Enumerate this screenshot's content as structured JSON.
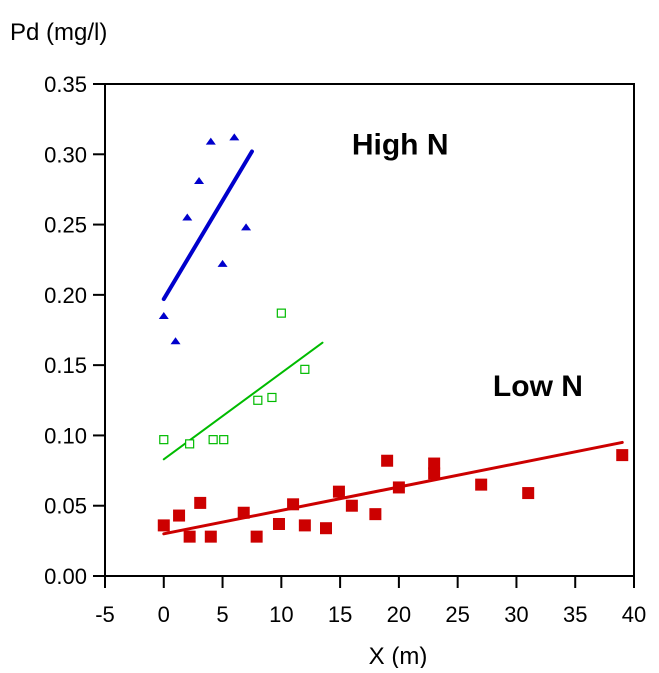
{
  "chart_data": {
    "type": "scatter",
    "ylabel": "Pd (mg/l)",
    "xlabel": "X (m)",
    "xlim": [
      -5,
      40
    ],
    "ylim": [
      0,
      0.35
    ],
    "xticks": [
      -5,
      0,
      5,
      10,
      15,
      20,
      25,
      30,
      35,
      40
    ],
    "yticks": [
      0.0,
      0.05,
      0.1,
      0.15,
      0.2,
      0.25,
      0.3,
      0.35
    ],
    "xtick_labels": [
      "-5",
      "0",
      "5",
      "10",
      "15",
      "20",
      "25",
      "30",
      "35",
      "40"
    ],
    "ytick_labels": [
      "0.00",
      "0.05",
      "0.10",
      "0.15",
      "0.20",
      "0.25",
      "0.30",
      "0.35"
    ],
    "grid": false,
    "annotations": [
      {
        "text": "High N",
        "x": 16,
        "y": 0.3
      },
      {
        "text": "Low N",
        "x": 28,
        "y": 0.128
      }
    ],
    "series": [
      {
        "color": "#0000cc",
        "marker": "triangle",
        "points": [
          [
            0,
            0.185
          ],
          [
            1,
            0.167
          ],
          [
            2,
            0.255
          ],
          [
            3,
            0.281
          ],
          [
            4,
            0.309
          ],
          [
            5,
            0.222
          ],
          [
            6,
            0.312
          ],
          [
            7,
            0.248
          ]
        ],
        "trend": [
          [
            0,
            0.197
          ],
          [
            7.5,
            0.302
          ]
        ]
      },
      {
        "color": "#00bb00",
        "marker": "open-square",
        "points": [
          [
            0,
            0.097
          ],
          [
            2.2,
            0.094
          ],
          [
            4.2,
            0.097
          ],
          [
            5.1,
            0.097
          ],
          [
            8,
            0.125
          ],
          [
            9.2,
            0.127
          ],
          [
            10,
            0.187
          ],
          [
            12,
            0.147
          ]
        ],
        "trend": [
          [
            0,
            0.083
          ],
          [
            13.5,
            0.166
          ]
        ]
      },
      {
        "color": "#cc0000",
        "marker": "filled-square",
        "points": [
          [
            0,
            0.036
          ],
          [
            1.3,
            0.043
          ],
          [
            2.2,
            0.028
          ],
          [
            3.1,
            0.052
          ],
          [
            4,
            0.028
          ],
          [
            6.8,
            0.045
          ],
          [
            7.9,
            0.028
          ],
          [
            9.8,
            0.037
          ],
          [
            11,
            0.051
          ],
          [
            12,
            0.036
          ],
          [
            13.8,
            0.034
          ],
          [
            14.9,
            0.06
          ],
          [
            16,
            0.05
          ],
          [
            18,
            0.044
          ],
          [
            19,
            0.082
          ],
          [
            20,
            0.063
          ],
          [
            23,
            0.08
          ],
          [
            23,
            0.073
          ],
          [
            27,
            0.065
          ],
          [
            31,
            0.059
          ],
          [
            39,
            0.086
          ]
        ],
        "trend": [
          [
            0,
            0.03
          ],
          [
            39,
            0.095
          ]
        ]
      }
    ]
  }
}
